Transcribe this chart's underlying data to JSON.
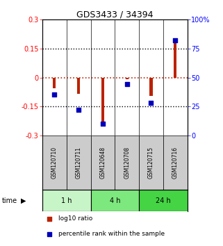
{
  "title": "GDS3433 / 34394",
  "samples": [
    "GSM120710",
    "GSM120711",
    "GSM120648",
    "GSM120708",
    "GSM120715",
    "GSM120716"
  ],
  "log10_ratio": [
    -0.055,
    -0.085,
    -0.245,
    -0.008,
    -0.095,
    0.19
  ],
  "percentile_rank": [
    35,
    22,
    10,
    44,
    28,
    82
  ],
  "groups": [
    {
      "label": "1 h",
      "indices": [
        0,
        1
      ],
      "color": "#c8f5c8"
    },
    {
      "label": "4 h",
      "indices": [
        2,
        3
      ],
      "color": "#7de87d"
    },
    {
      "label": "24 h",
      "indices": [
        4,
        5
      ],
      "color": "#44d444"
    }
  ],
  "ylim_left": [
    -0.3,
    0.3
  ],
  "ylim_right": [
    0,
    100
  ],
  "yticks_left": [
    -0.3,
    -0.15,
    0,
    0.15,
    0.3
  ],
  "yticks_right": [
    0,
    25,
    50,
    75,
    100
  ],
  "bar_color": "#bb2200",
  "dot_color": "#0000bb",
  "background_color": "#ffffff",
  "plot_bg_color": "#ffffff",
  "sample_box_color": "#cccccc",
  "legend_items": [
    {
      "label": "log10 ratio",
      "color": "#bb2200"
    },
    {
      "label": "percentile rank within the sample",
      "color": "#0000bb"
    }
  ]
}
